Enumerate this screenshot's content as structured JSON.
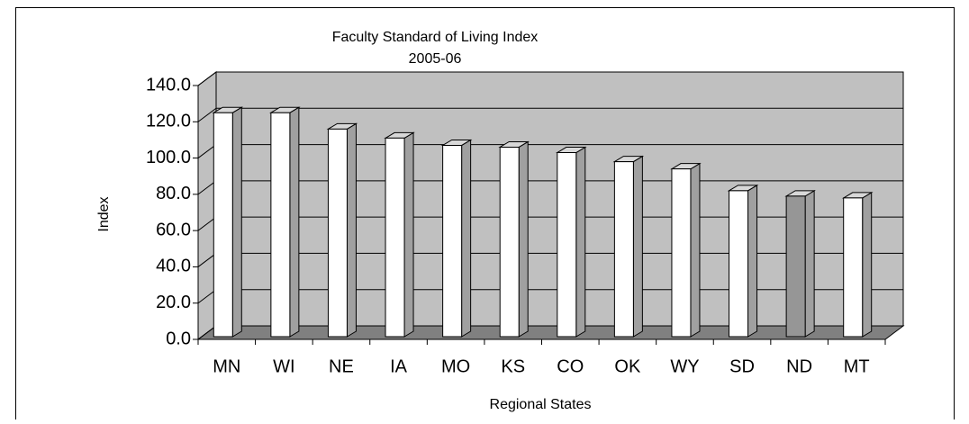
{
  "chart_data": {
    "type": "bar3d",
    "title": "Faculty Standard of Living Index",
    "subtitle": "2005-06",
    "x_label": "Regional States",
    "y_label": "Index",
    "categories": [
      "MN",
      "WI",
      "NE",
      "IA",
      "MO",
      "KS",
      "CO",
      "OK",
      "WY",
      "SD",
      "ND",
      "MT"
    ],
    "values": [
      125,
      125,
      116,
      111,
      107,
      106,
      103,
      98,
      94,
      82,
      79,
      78
    ],
    "colors": [
      "#ffffff",
      "#ffffff",
      "#ffffff",
      "#ffffff",
      "#ffffff",
      "#ffffff",
      "#ffffff",
      "#ffffff",
      "#ffffff",
      "#ffffff",
      "#969696",
      "#ffffff"
    ],
    "ylim": [
      0,
      140
    ],
    "yticks": [
      {
        "value": 0,
        "label": "0.0"
      },
      {
        "value": 20,
        "label": "20.0"
      },
      {
        "value": 40,
        "label": "40.0"
      },
      {
        "value": 60,
        "label": "60.0"
      },
      {
        "value": 80,
        "label": "80.0"
      },
      {
        "value": 100,
        "label": "100.0"
      },
      {
        "value": 120,
        "label": "120.0"
      },
      {
        "value": 140,
        "label": "140.0"
      }
    ],
    "grid": true
  }
}
